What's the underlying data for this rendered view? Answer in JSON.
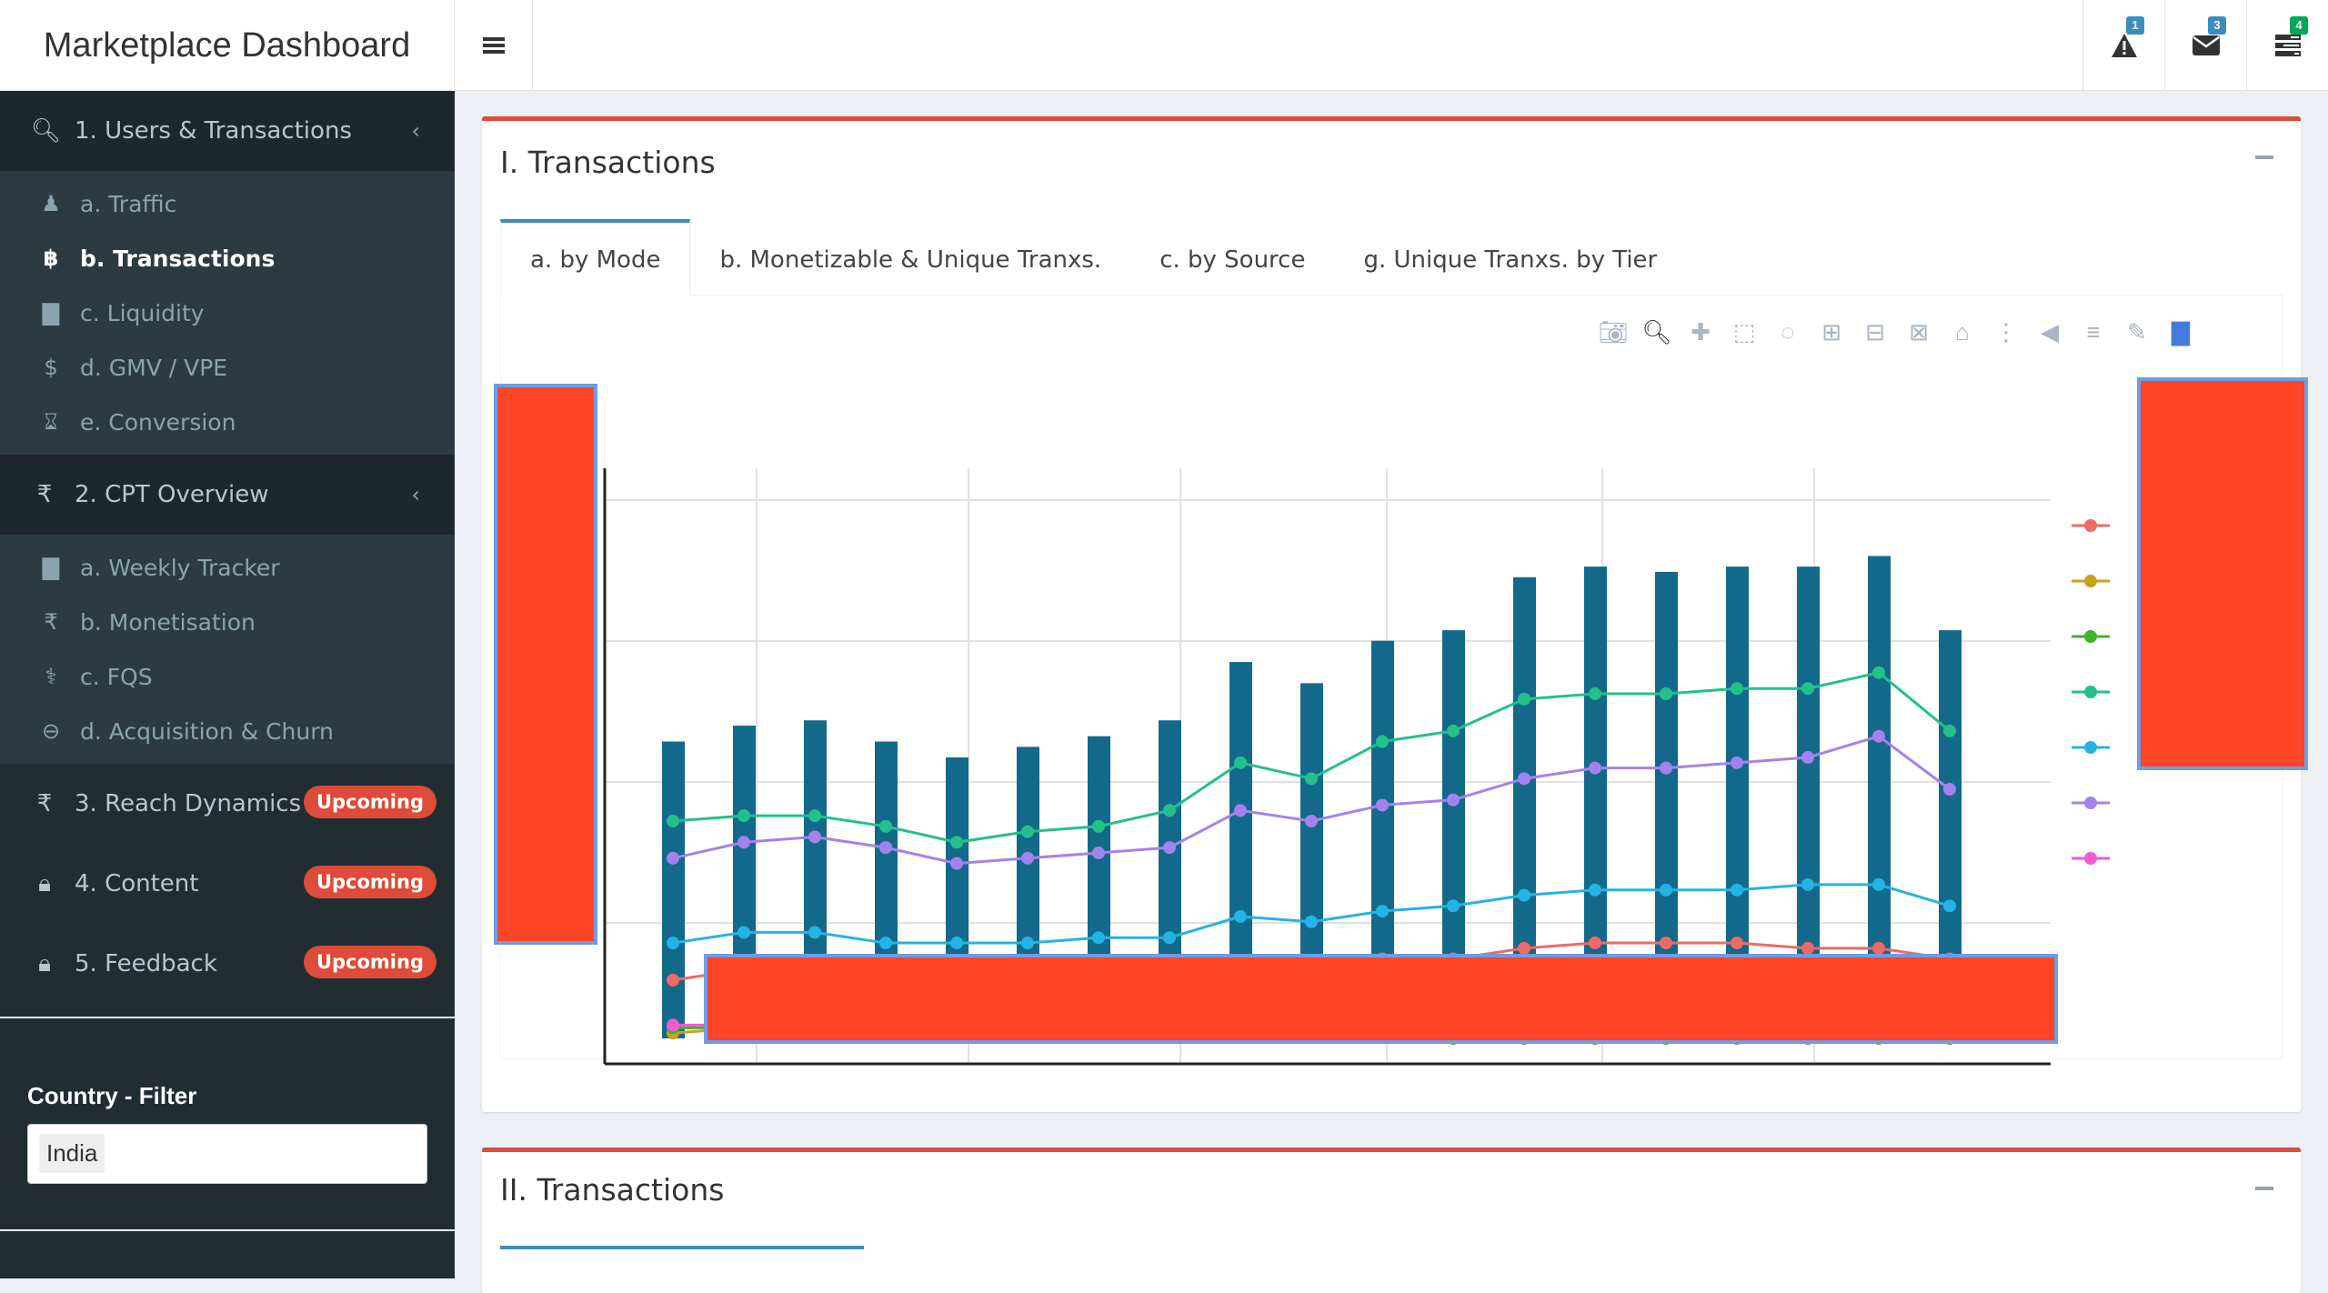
{
  "header": {
    "brand": "Marketplace Dashboard",
    "notifications": [
      {
        "icon": "warning-icon",
        "count": "1",
        "color": "#3c8dbc"
      },
      {
        "icon": "envelope-icon",
        "count": "3",
        "color": "#3c8dbc"
      },
      {
        "icon": "tasks-icon",
        "count": "4",
        "color": "#00a65a"
      }
    ]
  },
  "sidebar": {
    "sections": [
      {
        "label": "1. Users & Transactions",
        "icon": "search-plus-icon",
        "items": [
          {
            "label": "a. Traffic",
            "icon": "users-icon"
          },
          {
            "label": "b. Transactions",
            "icon": "bitcoin-icon"
          },
          {
            "label": "c. Liquidity",
            "icon": "bar-chart-icon"
          },
          {
            "label": "d. GMV / VPE",
            "icon": "dollar-icon"
          },
          {
            "label": "e. Conversion",
            "icon": "hourglass-icon"
          }
        ]
      },
      {
        "label": "2. CPT Overview",
        "icon": "rupee-icon",
        "items": [
          {
            "label": "a. Weekly Tracker",
            "icon": "bar-chart-icon"
          },
          {
            "label": "b. Monetisation",
            "icon": "rupee-icon"
          },
          {
            "label": "c. FQS",
            "icon": "stethoscope-icon"
          },
          {
            "label": "d. Acquisition & Churn",
            "icon": "minus-circle-icon"
          }
        ]
      }
    ],
    "upcoming": [
      {
        "label": "3. Reach Dynamics",
        "icon": "rupee-icon",
        "badge": "Upcoming"
      },
      {
        "label": "4. Content",
        "icon": "lock-icon",
        "badge": "Upcoming"
      },
      {
        "label": "5. Feedback",
        "icon": "lock-icon",
        "badge": "Upcoming"
      }
    ],
    "filter": {
      "label": "Country - Filter",
      "selected": "India"
    }
  },
  "main": {
    "box1": {
      "title": "I. Transactions",
      "tabs": [
        "a. by Mode",
        "b. Monetizable & Unique Tranxs.",
        "c. by Source",
        "g. Unique Tranxs. by Tier"
      ]
    },
    "box2": {
      "title": "II. Transactions"
    }
  },
  "chart_data": {
    "type": "bar",
    "ylim": [
      0,
      100
    ],
    "grid": true,
    "legend_position": "right",
    "bar_values": [
      56,
      59,
      60,
      56,
      53,
      55,
      57,
      60,
      71,
      67,
      75,
      77,
      87,
      89,
      88,
      89,
      89,
      91,
      77
    ],
    "series": [
      {
        "color": "#ef6a64",
        "values": [
          11,
          13,
          13,
          12,
          11,
          12,
          12,
          13,
          14,
          14,
          15,
          15,
          17,
          18,
          18,
          18,
          17,
          17,
          15
        ]
      },
      {
        "color": "#c9a21c",
        "values": [
          1,
          2,
          2,
          2,
          2,
          2,
          2,
          2,
          2,
          2,
          2,
          2,
          3,
          4,
          4,
          4,
          4,
          3,
          2
        ]
      },
      {
        "color": "#3fb32b",
        "values": [
          2,
          2,
          2,
          1.5,
          1.5,
          1.5,
          1.5,
          1.5,
          1,
          0.5,
          0.2,
          0,
          0,
          0,
          0,
          0,
          0,
          0,
          0
        ]
      },
      {
        "color": "#23c089",
        "values": [
          41,
          42,
          42,
          40,
          37,
          39,
          40,
          43,
          52,
          49,
          56,
          58,
          64,
          65,
          65,
          66,
          66,
          69,
          58
        ]
      },
      {
        "color": "#24b3e6",
        "values": [
          18,
          20,
          20,
          18,
          18,
          18,
          19,
          19,
          23,
          22,
          24,
          25,
          27,
          28,
          28,
          28,
          29,
          29,
          25
        ]
      },
      {
        "color": "#a482ed",
        "values": [
          34,
          37,
          38,
          36,
          33,
          34,
          35,
          36,
          43,
          41,
          44,
          45,
          49,
          51,
          51,
          52,
          53,
          57,
          47
        ]
      },
      {
        "color": "#f25ad4",
        "values": [
          2.5,
          2.5,
          2.7,
          2.5,
          2.3,
          2.5,
          2.5,
          2.6,
          2.8,
          2.7,
          2.9,
          3,
          3.3,
          3.4,
          3.4,
          3.4,
          3.4,
          3.3,
          3
        ]
      }
    ]
  }
}
